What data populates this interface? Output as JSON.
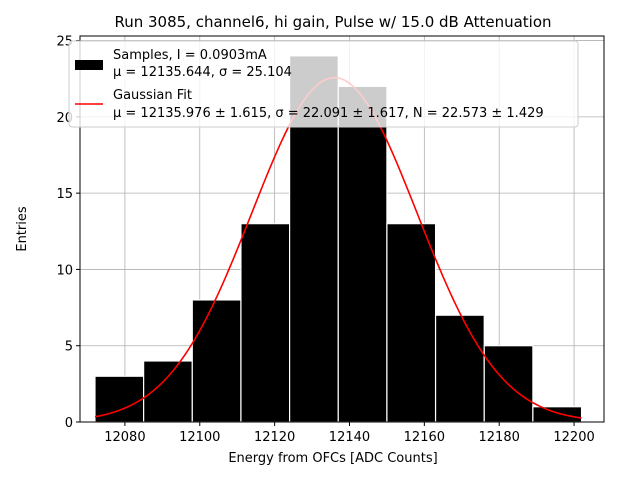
{
  "chart_data": {
    "type": "bar",
    "title": "Run 3085, channel6, hi gain, Pulse w/ 15.0 dB Attenuation",
    "xlabel": "Energy from OFCs [ADC Counts]",
    "ylabel": "Entries",
    "xlim": [
      12068,
      12208
    ],
    "ylim": [
      0,
      25.3
    ],
    "xticks": [
      12080,
      12100,
      12120,
      12140,
      12160,
      12180,
      12200
    ],
    "yticks": [
      0,
      5,
      10,
      15,
      20,
      25
    ],
    "grid": true,
    "legend_position": "top-left",
    "histogram": {
      "bin_edges": [
        12072,
        12085,
        12098,
        12111,
        12124,
        12137,
        12150,
        12163,
        12176,
        12189,
        12202
      ],
      "counts": [
        3,
        4,
        8,
        13,
        24,
        22,
        13,
        7,
        5,
        1
      ],
      "color": "#000000"
    },
    "fit": {
      "mu": 12135.976,
      "sigma": 22.091,
      "N": 22.573,
      "x_range": [
        12072,
        12202
      ],
      "color": "#ff0000"
    },
    "legend": [
      {
        "line1": "Samples, I = 0.0903mA",
        "line2": "μ = 12135.644, σ = 25.104"
      },
      {
        "line1": "Gaussian Fit",
        "line2": "μ = 12135.976 ± 1.615, σ = 22.091 ± 1.617, N = 22.573 ± 1.429"
      }
    ]
  }
}
